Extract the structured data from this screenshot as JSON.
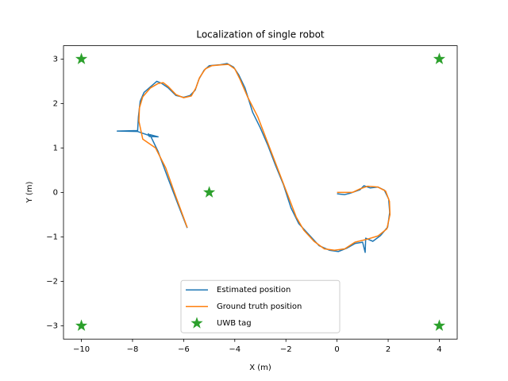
{
  "chart_data": {
    "type": "line",
    "title": "Localization of single robot",
    "x_label": "X (m)",
    "y_label": "Y (m)",
    "xlim": [
      -10.7,
      4.7
    ],
    "ylim": [
      -3.3,
      3.3
    ],
    "xticks": [
      {
        "value": -10,
        "label": "−10"
      },
      {
        "value": -8,
        "label": "−8"
      },
      {
        "value": -6,
        "label": "−6"
      },
      {
        "value": -4,
        "label": "−4"
      },
      {
        "value": -2,
        "label": "−2"
      },
      0,
      2,
      4
    ],
    "yticks": [
      {
        "value": -3,
        "label": "−3"
      },
      {
        "value": -2,
        "label": "−2"
      },
      {
        "value": -1,
        "label": "−1"
      },
      0,
      1,
      2,
      3
    ],
    "legend": "lower center",
    "series": [
      {
        "name": "Estimated position",
        "color": "#1f77b4",
        "type": "line",
        "x": [
          -5.86,
          -6.2,
          -6.6,
          -7.0,
          -7.32,
          -7.0,
          -7.35,
          -7.38,
          -7.35,
          -7.8,
          -8.6,
          -7.8,
          -7.77,
          -7.7,
          -7.55,
          -7.35,
          -7.05,
          -6.85,
          -6.6,
          -6.3,
          -6.0,
          -5.75,
          -5.55,
          -5.4,
          -5.2,
          -5.0,
          -4.6,
          -4.3,
          -4.05,
          -3.85,
          -3.6,
          -3.3,
          -3.0,
          -2.7,
          -2.4,
          -2.1,
          -1.8,
          -1.5,
          -1.1,
          -0.7,
          -0.3,
          0.05,
          0.4,
          0.7,
          1.0,
          1.1,
          1.12,
          1.4,
          1.7,
          1.98,
          2.06,
          2.02,
          1.85,
          1.6,
          1.3,
          1.05,
          0.9,
          0.7,
          0.5,
          0.3,
          0.0
        ],
        "values": [
          -0.8,
          -0.3,
          0.3,
          0.92,
          1.3,
          1.25,
          1.26,
          1.32,
          1.28,
          1.37,
          1.38,
          1.39,
          1.7,
          2.05,
          2.25,
          2.35,
          2.5,
          2.45,
          2.35,
          2.18,
          2.14,
          2.18,
          2.3,
          2.55,
          2.75,
          2.85,
          2.87,
          2.9,
          2.82,
          2.65,
          2.35,
          1.8,
          1.45,
          1.05,
          0.6,
          0.18,
          -0.35,
          -0.7,
          -0.95,
          -1.2,
          -1.3,
          -1.33,
          -1.25,
          -1.15,
          -1.12,
          -1.35,
          -1.03,
          -1.1,
          -0.97,
          -0.78,
          -0.45,
          -0.15,
          0.05,
          0.12,
          0.1,
          0.15,
          0.06,
          0.02,
          -0.02,
          -0.05,
          -0.03
        ]
      },
      {
        "name": "Ground truth position",
        "color": "#ff7f0e",
        "type": "line",
        "x": [
          -5.86,
          -6.3,
          -6.7,
          -7.1,
          -7.6,
          -7.75,
          -7.73,
          -7.6,
          -7.3,
          -7.0,
          -6.8,
          -6.6,
          -6.3,
          -6.0,
          -5.7,
          -5.52,
          -5.38,
          -5.15,
          -4.9,
          -4.5,
          -4.25,
          -4.0,
          -3.8,
          -3.5,
          -3.1,
          -2.7,
          -2.3,
          -1.9,
          -1.6,
          -1.3,
          -0.9,
          -0.5,
          -0.1,
          0.3,
          0.7,
          1.2,
          1.6,
          1.95,
          2.07,
          2.05,
          1.9,
          1.6,
          1.2,
          0.9,
          0.6,
          0.3,
          0.0
        ],
        "values": [
          -0.79,
          -0.1,
          0.55,
          1.0,
          1.2,
          1.6,
          1.9,
          2.15,
          2.35,
          2.45,
          2.47,
          2.38,
          2.2,
          2.13,
          2.17,
          2.35,
          2.58,
          2.78,
          2.85,
          2.87,
          2.88,
          2.78,
          2.55,
          2.15,
          1.7,
          1.1,
          0.5,
          -0.1,
          -0.55,
          -0.85,
          -1.1,
          -1.27,
          -1.3,
          -1.27,
          -1.12,
          -1.05,
          -0.98,
          -0.82,
          -0.5,
          -0.2,
          0.03,
          0.12,
          0.14,
          0.08,
          0.0,
          0.0,
          0.0
        ]
      },
      {
        "name": "UWB tag",
        "color": "#2ca02c",
        "type": "scatter",
        "marker": "star",
        "x": [
          -10,
          4,
          -10,
          4,
          -5
        ],
        "values": [
          3,
          3,
          -3,
          -3,
          0
        ]
      }
    ]
  }
}
